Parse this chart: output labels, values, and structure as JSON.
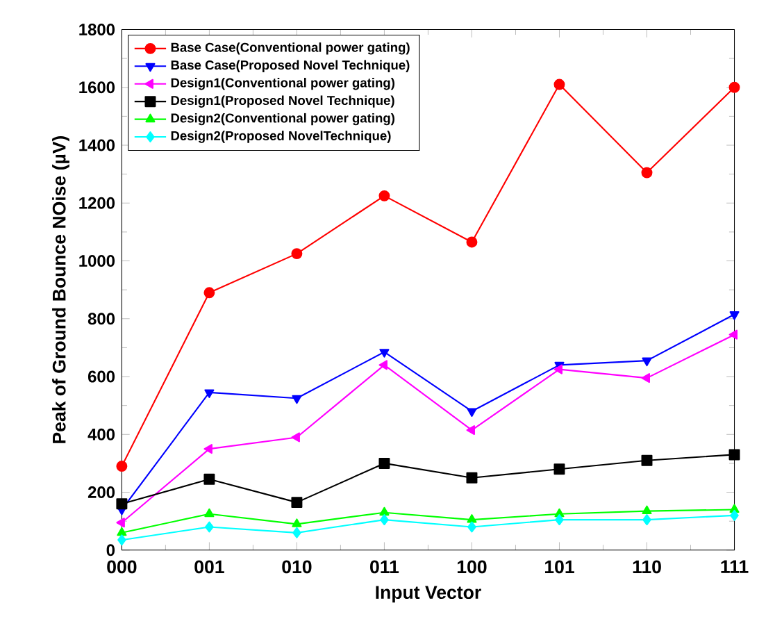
{
  "chart_data": {
    "type": "line",
    "xlabel": "Input Vector",
    "ylabel": "Peak of Ground Bounce NOise (µV)",
    "categories": [
      "000",
      "001",
      "010",
      "011",
      "100",
      "101",
      "110",
      "111"
    ],
    "ylim": [
      0,
      1800
    ],
    "yticks": [
      0,
      200,
      400,
      600,
      800,
      1000,
      1200,
      1400,
      1600,
      1800
    ],
    "legend": "top left",
    "grid": false,
    "series": [
      {
        "name": "Base Case(Conventional power gating)",
        "color": "#ff0000",
        "marker": "circle",
        "values": [
          290,
          890,
          1025,
          1225,
          1065,
          1610,
          1305,
          1600
        ]
      },
      {
        "name": "Base Case(Proposed Novel Technique)",
        "color": "#0000ff",
        "marker": "triangle-down",
        "values": [
          140,
          545,
          525,
          685,
          480,
          640,
          655,
          815
        ]
      },
      {
        "name": "Design1(Conventional power gating)",
        "color": "#ff00ff",
        "marker": "triangle-left",
        "values": [
          95,
          350,
          390,
          640,
          415,
          625,
          595,
          745
        ]
      },
      {
        "name": "Design1(Proposed Novel Technique)",
        "color": "#000000",
        "marker": "square",
        "values": [
          160,
          245,
          165,
          300,
          250,
          280,
          310,
          330
        ]
      },
      {
        "name": "Design2(Conventional power gating)",
        "color": "#00ff00",
        "marker": "triangle",
        "values": [
          60,
          125,
          90,
          130,
          105,
          125,
          135,
          140
        ]
      },
      {
        "name": "Design2(Proposed NovelTechnique)",
        "color": "#00ffff",
        "marker": "diamond",
        "values": [
          35,
          80,
          60,
          105,
          80,
          105,
          105,
          120
        ]
      }
    ]
  }
}
